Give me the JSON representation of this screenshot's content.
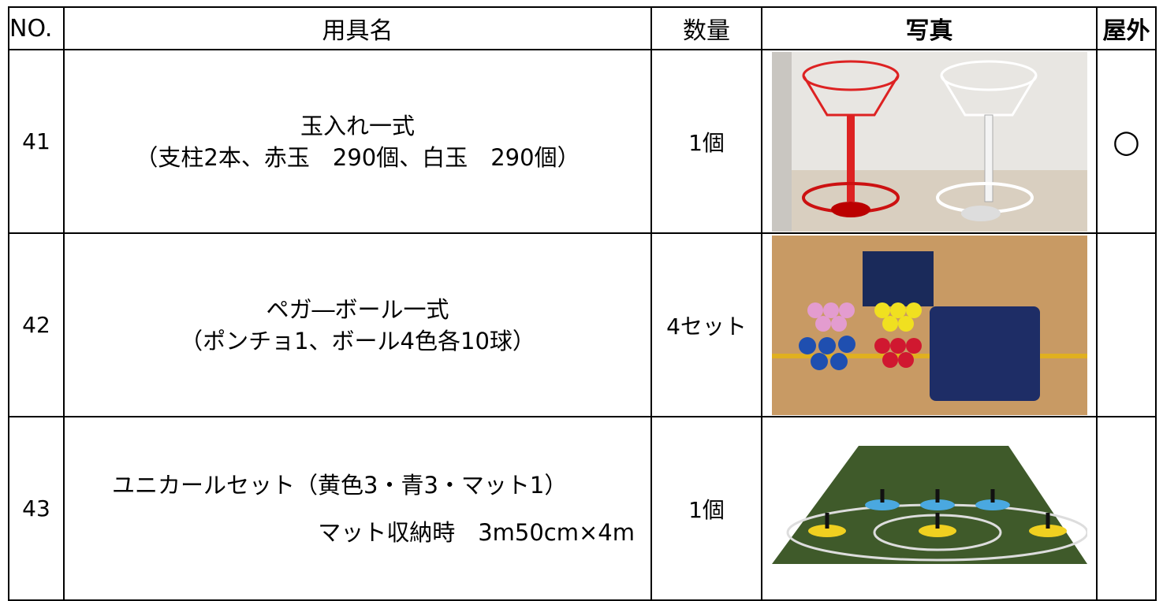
{
  "header": {
    "columns": [
      "NO.",
      "用具名",
      "数量",
      "写真",
      "屋外"
    ]
  },
  "table": {
    "rows": [
      {
        "no": "41",
        "name": [
          "玉入れ一式",
          "（支柱2本、赤玉　290個、白玉　290個）"
        ],
        "quantity": "1個",
        "outdoor": "○"
      },
      {
        "no": "42",
        "name": [
          "ペガ―ボール一式",
          "（ポンチョ1、ボール4色各10球）"
        ],
        "quantity": "4セット"
      },
      {
        "no": "43",
        "name": [
          "ユニカールセット（黄色3・青3・マット1）",
          "マット収納時　3m50cm×4m"
        ],
        "quantity": "1個"
      }
    ]
  }
}
